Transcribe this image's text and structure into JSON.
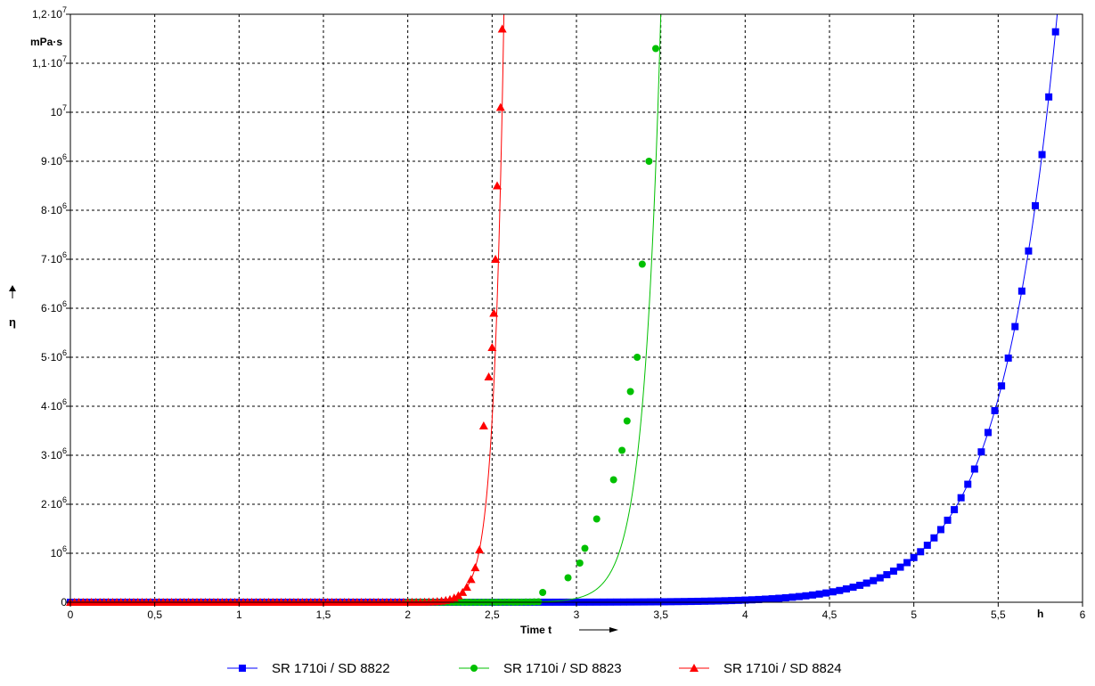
{
  "chart_data": {
    "type": "scatter",
    "xlabel": "Time t",
    "x_unit": "h",
    "ylabel": "η",
    "y_unit": "mPa·s",
    "xlim": [
      0,
      6
    ],
    "ylim": [
      0,
      12000000
    ],
    "grid": true,
    "legend_position": "bottom",
    "x_ticks": [
      {
        "v": 0,
        "label": "0"
      },
      {
        "v": 0.5,
        "label": "0,5"
      },
      {
        "v": 1,
        "label": "1"
      },
      {
        "v": 1.5,
        "label": "1,5"
      },
      {
        "v": 2,
        "label": "2"
      },
      {
        "v": 2.5,
        "label": "2,5"
      },
      {
        "v": 3,
        "label": "3"
      },
      {
        "v": 3.5,
        "label": "3,5"
      },
      {
        "v": 4,
        "label": "4"
      },
      {
        "v": 4.5,
        "label": "4,5"
      },
      {
        "v": 5,
        "label": "5"
      },
      {
        "v": 5.5,
        "label": "5,5"
      },
      {
        "v": 6,
        "label": "6"
      }
    ],
    "y_ticks": [
      {
        "v": 0,
        "base": "0",
        "exp": ""
      },
      {
        "v": 1000000,
        "base": "10",
        "exp": "6"
      },
      {
        "v": 2000000,
        "base": "2·10",
        "exp": "6"
      },
      {
        "v": 3000000,
        "base": "3·10",
        "exp": "6"
      },
      {
        "v": 4000000,
        "base": "4·10",
        "exp": "6"
      },
      {
        "v": 5000000,
        "base": "5·10",
        "exp": "6"
      },
      {
        "v": 6000000,
        "base": "6·10",
        "exp": "6"
      },
      {
        "v": 7000000,
        "base": "7·10",
        "exp": "6"
      },
      {
        "v": 8000000,
        "base": "8·10",
        "exp": "6"
      },
      {
        "v": 9000000,
        "base": "9·10",
        "exp": "6"
      },
      {
        "v": 10000000,
        "base": "10",
        "exp": "7"
      },
      {
        "v": 11000000,
        "base": "1,1·10",
        "exp": "7"
      },
      {
        "v": 12000000,
        "base": "1,2·10",
        "exp": "7"
      }
    ],
    "series": [
      {
        "name": "SR 1710i / SD 8822",
        "color": "#0000ff",
        "marker": "square",
        "curve": {
          "x_start": 0.0,
          "t_end": 5.85,
          "tau": 0.33,
          "offset": 0
        }
      },
      {
        "name": "SR 1710i / SD 8823",
        "color": "#00c000",
        "marker": "circle",
        "curve": {
          "x_start": 2.0,
          "t_end": 3.5,
          "tau": 0.1,
          "offset": 0
        },
        "points": [
          [
            2.8,
            200000
          ],
          [
            2.95,
            500000
          ],
          [
            3.02,
            800000
          ],
          [
            3.05,
            1100000
          ],
          [
            3.12,
            1700000
          ],
          [
            3.22,
            2500000
          ],
          [
            3.27,
            3100000
          ],
          [
            3.3,
            3700000
          ],
          [
            3.32,
            4300000
          ],
          [
            3.36,
            5000000
          ],
          [
            3.39,
            6900000
          ],
          [
            3.43,
            9000000
          ],
          [
            3.47,
            11300000
          ]
        ]
      },
      {
        "name": "SR 1710i / SD 8824",
        "color": "#ff0000",
        "marker": "triangle",
        "curve": {
          "x_start": 0.0,
          "t_end": 2.57,
          "tau": 0.06,
          "offset": 0
        },
        "points": [
          [
            2.45,
            3600000
          ],
          [
            2.48,
            4600000
          ],
          [
            2.5,
            5200000
          ],
          [
            2.51,
            5900000
          ],
          [
            2.52,
            7000000
          ],
          [
            2.53,
            8500000
          ],
          [
            2.55,
            10100000
          ],
          [
            2.56,
            11700000
          ]
        ]
      }
    ]
  }
}
